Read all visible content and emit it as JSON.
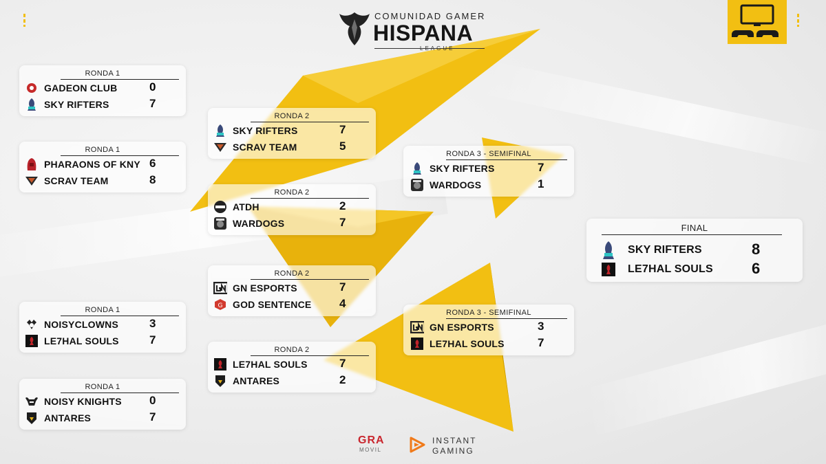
{
  "brand": {
    "top": "COMUNIDAD GAMER",
    "main": "HISPANA",
    "sub": "LEAGUE",
    "logo_icon": "phoenix-icon"
  },
  "corner_icon": "monitor-gamepads-icon",
  "colors": {
    "accent": "#f2bf12",
    "accent_dark": "#d8a400"
  },
  "matches": [
    {
      "id": "r1m1",
      "round": "RONDA 1",
      "teams": [
        {
          "name": "GADEON CLUB",
          "score": "0",
          "icon": "gadeon-logo-icon"
        },
        {
          "name": "SKY RIFTERS",
          "score": "7",
          "icon": "sky-rifters-logo-icon"
        }
      ]
    },
    {
      "id": "r1m2",
      "round": "RONDA 1",
      "teams": [
        {
          "name": "PHARAONS OF KNY",
          "score": "6",
          "icon": "pharaons-logo-icon"
        },
        {
          "name": "SCRAV TEAM",
          "score": "8",
          "icon": "scrav-logo-icon"
        }
      ]
    },
    {
      "id": "r1m3",
      "round": "RONDA 1",
      "teams": [
        {
          "name": "NOISYCLOWNS",
          "score": "3",
          "icon": "noisyclowns-logo-icon"
        },
        {
          "name": "LE7HAL SOULS",
          "score": "7",
          "icon": "le7hal-logo-icon"
        }
      ]
    },
    {
      "id": "r1m4",
      "round": "RONDA 1",
      "teams": [
        {
          "name": "NOISY KNIGHTS",
          "score": "0",
          "icon": "noisy-knights-logo-icon"
        },
        {
          "name": "ANTARES",
          "score": "7",
          "icon": "antares-logo-icon"
        }
      ]
    },
    {
      "id": "r2m1",
      "round": "RONDA 2",
      "teams": [
        {
          "name": "SKY RIFTERS",
          "score": "7",
          "icon": "sky-rifters-logo-icon"
        },
        {
          "name": "SCRAV TEAM",
          "score": "5",
          "icon": "scrav-logo-icon"
        }
      ]
    },
    {
      "id": "r2m2",
      "round": "RONDA 2",
      "teams": [
        {
          "name": "ATDH",
          "score": "2",
          "icon": "atdh-logo-icon"
        },
        {
          "name": "WARDOGS",
          "score": "7",
          "icon": "wardogs-logo-icon"
        }
      ]
    },
    {
      "id": "r2m3",
      "round": "RONDA 2",
      "teams": [
        {
          "name": "GN ESPORTS",
          "score": "7",
          "icon": "gn-esports-logo-icon"
        },
        {
          "name": "GOD SENTENCE",
          "score": "4",
          "icon": "god-sentence-logo-icon"
        }
      ]
    },
    {
      "id": "r2m4",
      "round": "RONDA 2",
      "teams": [
        {
          "name": "LE7HAL SOULS",
          "score": "7",
          "icon": "le7hal-logo-icon"
        },
        {
          "name": "ANTARES",
          "score": "2",
          "icon": "antares-logo-icon"
        }
      ]
    },
    {
      "id": "r3m1",
      "round": "RONDA 3 - SEMIFINAL",
      "teams": [
        {
          "name": "SKY RIFTERS",
          "score": "7",
          "icon": "sky-rifters-logo-icon"
        },
        {
          "name": "WARDOGS",
          "score": "1",
          "icon": "wardogs-logo-icon"
        }
      ]
    },
    {
      "id": "r3m2",
      "round": "RONDA 3 - SEMIFINAL",
      "teams": [
        {
          "name": "GN ESPORTS",
          "score": "3",
          "icon": "gn-esports-logo-icon"
        },
        {
          "name": "LE7HAL SOULS",
          "score": "7",
          "icon": "le7hal-logo-icon"
        }
      ]
    },
    {
      "id": "final",
      "round": "FINAL",
      "teams": [
        {
          "name": "SKY RIFTERS",
          "score": "8",
          "icon": "sky-rifters-logo-icon"
        },
        {
          "name": "LE7HAL SOULS",
          "score": "6",
          "icon": "le7hal-logo-icon"
        }
      ]
    }
  ],
  "sponsors": {
    "gra": "GRA",
    "gra_sub": "MOVIL",
    "ig_line1": "INSTANT",
    "ig_line2": "GAMING"
  }
}
